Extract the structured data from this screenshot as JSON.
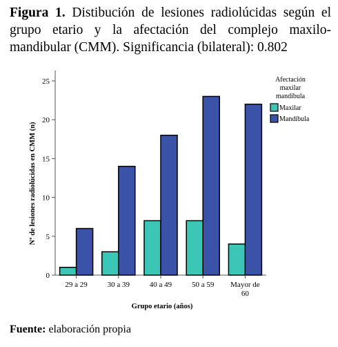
{
  "caption": {
    "label": "Figura 1.",
    "text": "Distibución de lesiones radiolúcidas según el grupo etario y la afectación del complejo maxilo-mandibular (CMM). Significancia (bilateral): 0.802"
  },
  "source": {
    "label": "Fuente:",
    "text": "elaboración propia"
  },
  "chart_data": {
    "type": "bar",
    "categories": [
      "29 a 29",
      "30 a 39",
      "40 a 49",
      "50 a 59",
      "Mayor de 60"
    ],
    "category_lines": [
      [
        "29 a 29"
      ],
      [
        "30 a 39"
      ],
      [
        "40 a 49"
      ],
      [
        "50 a 59"
      ],
      [
        "Mayor de",
        "60"
      ]
    ],
    "series": [
      {
        "name": "Maxilar",
        "values": [
          1,
          3,
          7,
          7,
          4
        ],
        "color": "#3cc6b6"
      },
      {
        "name": "Mandíbula",
        "values": [
          6,
          14,
          18,
          23,
          22
        ],
        "color": "#3a52a8"
      }
    ],
    "xlabel": "Grupo etario (años)",
    "ylabel": "Nº de lesiones radiolúcidas en CMM (n)",
    "ylim": [
      0,
      25
    ],
    "yticks": [
      0,
      5,
      10,
      15,
      20,
      25
    ],
    "legend": {
      "title_lines": [
        "Afectación",
        "maxilar",
        "mandíbula"
      ],
      "placement": "right"
    },
    "grid": false
  }
}
